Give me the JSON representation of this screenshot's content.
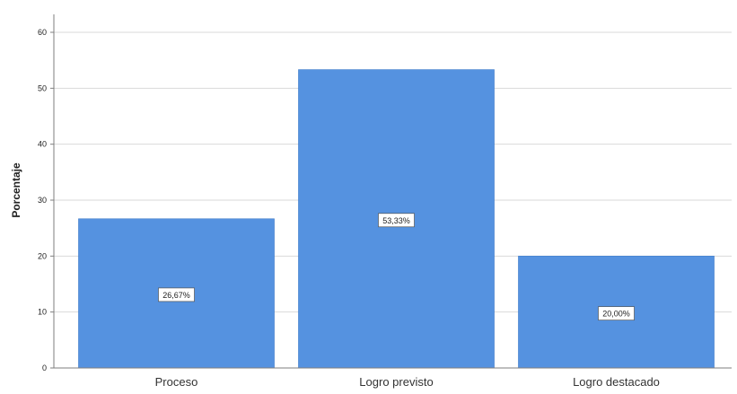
{
  "chart_data": {
    "type": "bar",
    "categories": [
      "Proceso",
      "Logro previsto",
      "Logro destacado"
    ],
    "values": [
      26.67,
      53.33,
      20.0
    ],
    "data_labels": [
      "26,67%",
      "53,33%",
      "20,00%"
    ],
    "ylabel": "Porcentaje",
    "ylim": [
      0,
      60
    ],
    "yticks": [
      0,
      10,
      20,
      30,
      40,
      50,
      60
    ],
    "grid": true,
    "colors": {
      "bar": "#5592e0",
      "bar_edge": "#3f7bc9",
      "grid": "#d9d9d9",
      "axis": "#7f7f7f"
    }
  }
}
